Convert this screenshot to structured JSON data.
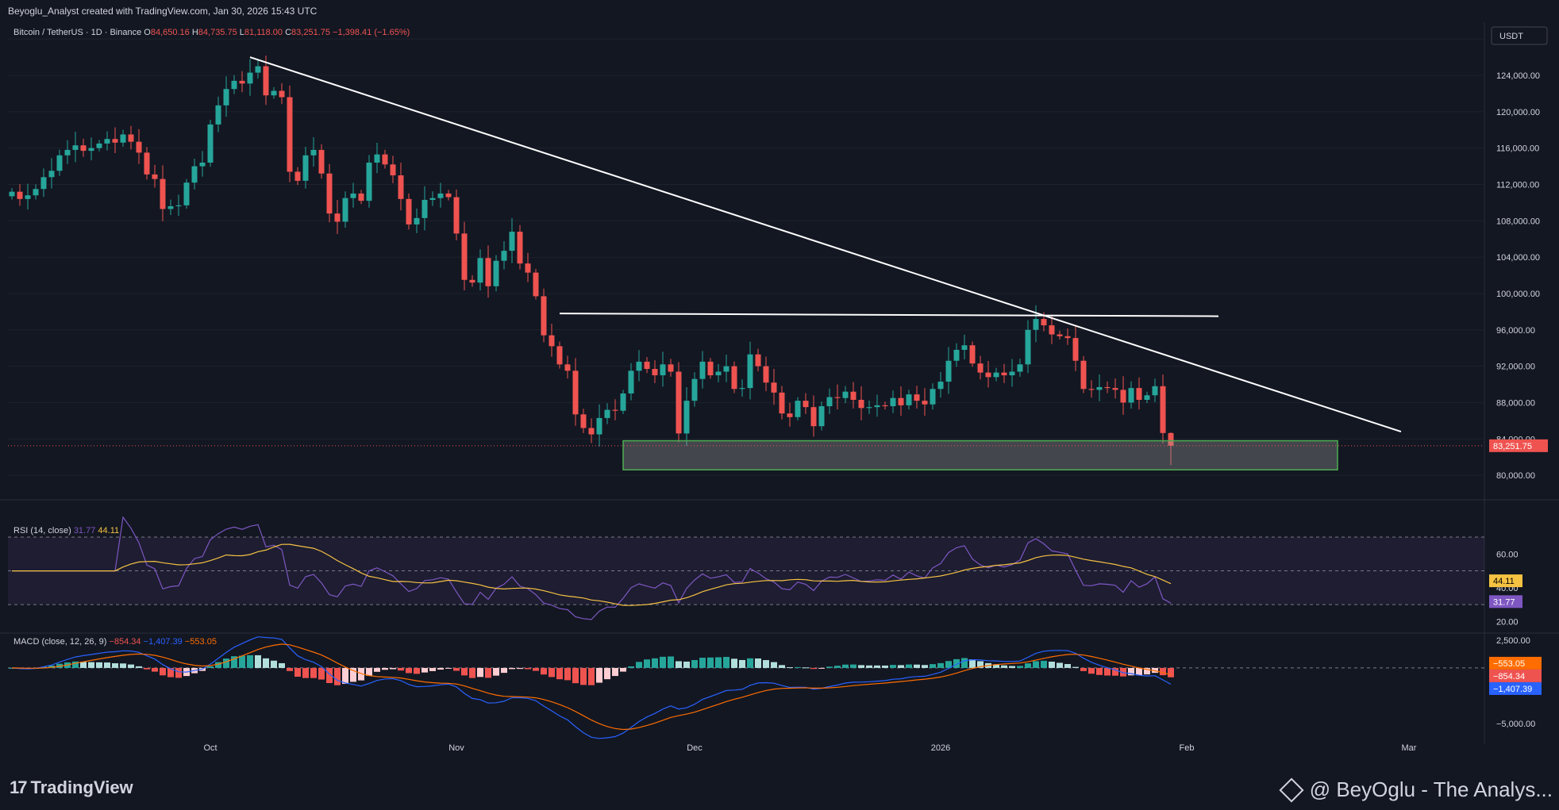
{
  "header": {
    "attribution": "Beyoglu_Analyst created with TradingView.com, Jan 30, 2026 15:43 UTC"
  },
  "colors": {
    "background": "#131722",
    "up": "#26a69a",
    "down": "#ef5350",
    "rsi_line": "#7e57c2",
    "rsi_ma": "#f5c242",
    "macd_line": "#2962ff",
    "signal_line": "#ff6d00",
    "trendline": "#ffffff",
    "support_zone": "#4caf50"
  },
  "chart_data": [
    {
      "type": "candlestick",
      "name": "price",
      "title": "Bitcoin / TetherUS · 1D · Binance",
      "ohlc": {
        "O": "84,650.16",
        "H": "84,735.75",
        "L": "81,118.00",
        "C": "83,251.75",
        "change": "−1,398.41 (−1.65%)"
      },
      "ohlc_labels": {
        "O": "O",
        "H": "H",
        "L": "L",
        "C": "C"
      },
      "currency": "USDT",
      "last_price": 83251.75,
      "last_price_label": "83,251.75",
      "ylim": [
        78000,
        129500
      ],
      "y_ticks": [
        128000,
        124000,
        120000,
        116000,
        112000,
        108000,
        104000,
        100000,
        96000,
        92000,
        88000,
        84000,
        80000
      ],
      "y_tick_labels": [
        "128,000.00",
        "124,000.00",
        "120,000.00",
        "116,000.00",
        "112,000.00",
        "108,000.00",
        "104,000.00",
        "100,000.00",
        "96,000.00",
        "92,000.00",
        "88,000.00",
        "84,000.00",
        "80,000.00"
      ],
      "x_labels": [
        {
          "date": "2025-10-01",
          "label": "Oct"
        },
        {
          "date": "2025-11-01",
          "label": "Nov"
        },
        {
          "date": "2025-12-01",
          "label": "Dec"
        },
        {
          "date": "2026-01-01",
          "label": "2026"
        },
        {
          "date": "2026-02-01",
          "label": "Feb"
        },
        {
          "date": "2026-03-01",
          "label": "Mar"
        }
      ],
      "first_date": "2025-09-06",
      "x_end_date": "2026-03-11",
      "closes": [
        111200,
        110400,
        110800,
        111500,
        112800,
        113500,
        115200,
        115800,
        116300,
        115700,
        116000,
        116500,
        117000,
        116600,
        117500,
        116700,
        115500,
        113100,
        112600,
        109300,
        109600,
        109700,
        112200,
        114000,
        114400,
        118600,
        120700,
        122500,
        123400,
        123100,
        124300,
        125000,
        121800,
        122300,
        121600,
        113400,
        112400,
        115200,
        115800,
        113200,
        108800,
        107900,
        110500,
        111000,
        110200,
        114400,
        115300,
        114200,
        113000,
        110400,
        107600,
        108300,
        110300,
        110500,
        111000,
        110600,
        106600,
        101500,
        101200,
        103900,
        100800,
        103600,
        104700,
        106800,
        103300,
        102300,
        99700,
        95400,
        94200,
        92200,
        91500,
        86700,
        85200,
        84500,
        86300,
        87200,
        87100,
        89000,
        91500,
        92500,
        91700,
        91000,
        92200,
        91400,
        84600,
        88200,
        90600,
        92500,
        91000,
        91400,
        92000,
        89500,
        89600,
        93300,
        92000,
        90200,
        89100,
        86800,
        86400,
        88200,
        87500,
        85400,
        87600,
        88600,
        88500,
        89200,
        88300,
        87400,
        87500,
        87700,
        87600,
        88500,
        87700,
        88900,
        88200,
        87800,
        89500,
        90300,
        92600,
        93800,
        94300,
        92300,
        91300,
        90800,
        91300,
        91000,
        91400,
        92200,
        96000,
        97200,
        96500,
        95500,
        95300,
        95100,
        92600,
        89500,
        89400,
        89700,
        89600,
        89400,
        88000,
        89600,
        88300,
        88800,
        89800,
        84650,
        83251.75
      ],
      "annotations": {
        "descending_trendline": {
          "from": {
            "date": "2025-10-06",
            "price": 126000
          },
          "to": {
            "date": "2026-02-28",
            "price": 84800
          }
        },
        "horizontal_resistance": {
          "from": {
            "date": "2025-11-14",
            "price": 97800
          },
          "to": {
            "date": "2026-02-05",
            "price": 97500
          }
        },
        "support_zone": {
          "from_date": "2025-11-22",
          "to_date": "2026-02-20",
          "top": 83800,
          "bottom": 80600
        }
      }
    },
    {
      "type": "line",
      "name": "rsi",
      "title": "RSI (14, close)",
      "values_label": {
        "rsi": "31.77",
        "ma": "44.11"
      },
      "ylim": [
        15,
        78
      ],
      "y_ticks": [
        60,
        40,
        20
      ],
      "y_tick_labels": [
        "60.00",
        "40.00",
        "20.00"
      ],
      "bands": [
        70,
        50,
        30
      ],
      "rsi_last": 31.77,
      "rsi_ma_last": 44.11,
      "rsi_last_label": "31.77",
      "rsi_ma_last_label": "44.11"
    },
    {
      "type": "bar",
      "name": "macd",
      "title": "MACD (close, 12, 26, 9)",
      "values_label": {
        "hist": "−854.34",
        "macd": "−1,407.39",
        "signal": "−553.05"
      },
      "ylim": [
        -6300,
        3000
      ],
      "y_ticks": [
        2500,
        -5000
      ],
      "y_tick_labels": [
        "2,500.00",
        "−5,000.00"
      ],
      "macd_last_label": "−1,407.39",
      "signal_last_label": "−553.05",
      "hist_last_label": "−854.34"
    }
  ],
  "footer": {
    "brand": "TradingView",
    "brand_mark": "17",
    "author": "@ BeyOglu - The Analys..."
  }
}
